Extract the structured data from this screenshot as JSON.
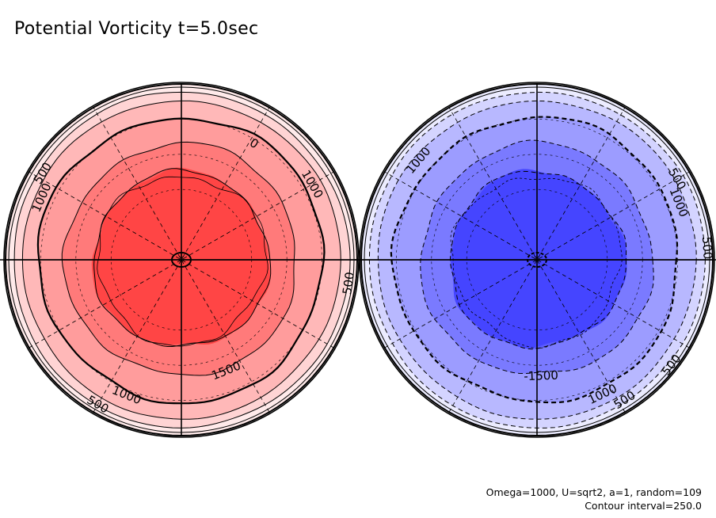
{
  "title": "Potential Vorticity t=5.0sec",
  "footer": {
    "params": "Omega=1000, U=sqrt2, a=1, random=109",
    "contour_interval": "Contour interval=250.0"
  },
  "colors": {
    "positive_fills": [
      "#ffeaea",
      "#ffd4d4",
      "#ffb8b8",
      "#ff9c9c",
      "#ff7a7a",
      "#ff5c5c",
      "#ff4545"
    ],
    "negative_fills": [
      "#ececff",
      "#d4d4ff",
      "#b8b8ff",
      "#9c9cff",
      "#7a7aff",
      "#5c5cff",
      "#4545ff"
    ],
    "line": "#000000",
    "grid": "#000000"
  },
  "chart_data": [
    {
      "type": "contour",
      "projection": "polar",
      "field": "positive",
      "levels": [
        0,
        250,
        500,
        750,
        1000,
        1250,
        1500
      ],
      "contour_labels": [
        {
          "text": "0",
          "level": 0
        },
        {
          "text": "500",
          "level": 500
        },
        {
          "text": "1000",
          "level": 1000
        },
        {
          "text": "1000",
          "level": 1000
        },
        {
          "text": "500",
          "level": 500
        },
        {
          "text": "1500",
          "level": 1500
        },
        {
          "text": "1000",
          "level": 1000
        },
        {
          "text": "500",
          "level": 500
        }
      ],
      "line_style": "solid",
      "grid_meridians_deg": 30
    },
    {
      "type": "contour",
      "projection": "polar",
      "field": "negative",
      "levels": [
        -1500,
        -1250,
        -1000,
        -750,
        -500,
        -250,
        0
      ],
      "contour_labels": [
        {
          "text": "500",
          "level": -500
        },
        {
          "text": "1000",
          "level": -1000
        },
        {
          "text": "500",
          "level": -500
        },
        {
          "text": "1000",
          "level": -1000
        },
        {
          "text": "500",
          "level": -500
        },
        {
          "text": "-1500",
          "level": -1500
        },
        {
          "text": "1000",
          "level": -1000
        },
        {
          "text": "500",
          "level": -500
        }
      ],
      "line_style": "dashed",
      "grid_meridians_deg": 30
    }
  ]
}
